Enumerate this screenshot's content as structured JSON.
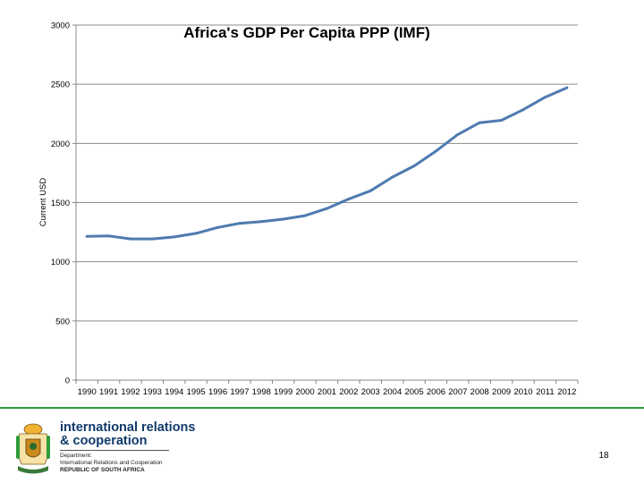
{
  "chart_data": {
    "type": "line",
    "title": "Africa's GDP Per Capita PPP (IMF)",
    "ylabel": "Current USD",
    "xlabel": "",
    "ylim": [
      0,
      3000
    ],
    "yticks": [
      0,
      500,
      1000,
      1500,
      2000,
      2500,
      3000
    ],
    "grid": "horizontal",
    "x": [
      "1990",
      "1991",
      "1992",
      "1993",
      "1994",
      "1995",
      "1996",
      "1997",
      "1998",
      "1999",
      "2000",
      "2001",
      "2002",
      "2003",
      "2004",
      "2005",
      "2006",
      "2007",
      "2008",
      "2009",
      "2010",
      "2011",
      "2012"
    ],
    "series": [
      {
        "values": [
          1215,
          1218,
          1193,
          1193,
          1210,
          1240,
          1290,
          1325,
          1340,
          1360,
          1390,
          1450,
          1530,
          1600,
          1715,
          1810,
          1935,
          2075,
          2175,
          2195,
          2285,
          2390,
          2470
        ],
        "color": "#4f7ab0"
      }
    ]
  },
  "footer": {
    "org_line1": "international relations",
    "org_line2": "& cooperation",
    "dept_line1": "Department:",
    "dept_line2": "International Relations and Cooperation",
    "dept_line3": "REPUBLIC OF SOUTH AFRICA",
    "page_number": "18",
    "accent_color": "#2e9c3a"
  }
}
